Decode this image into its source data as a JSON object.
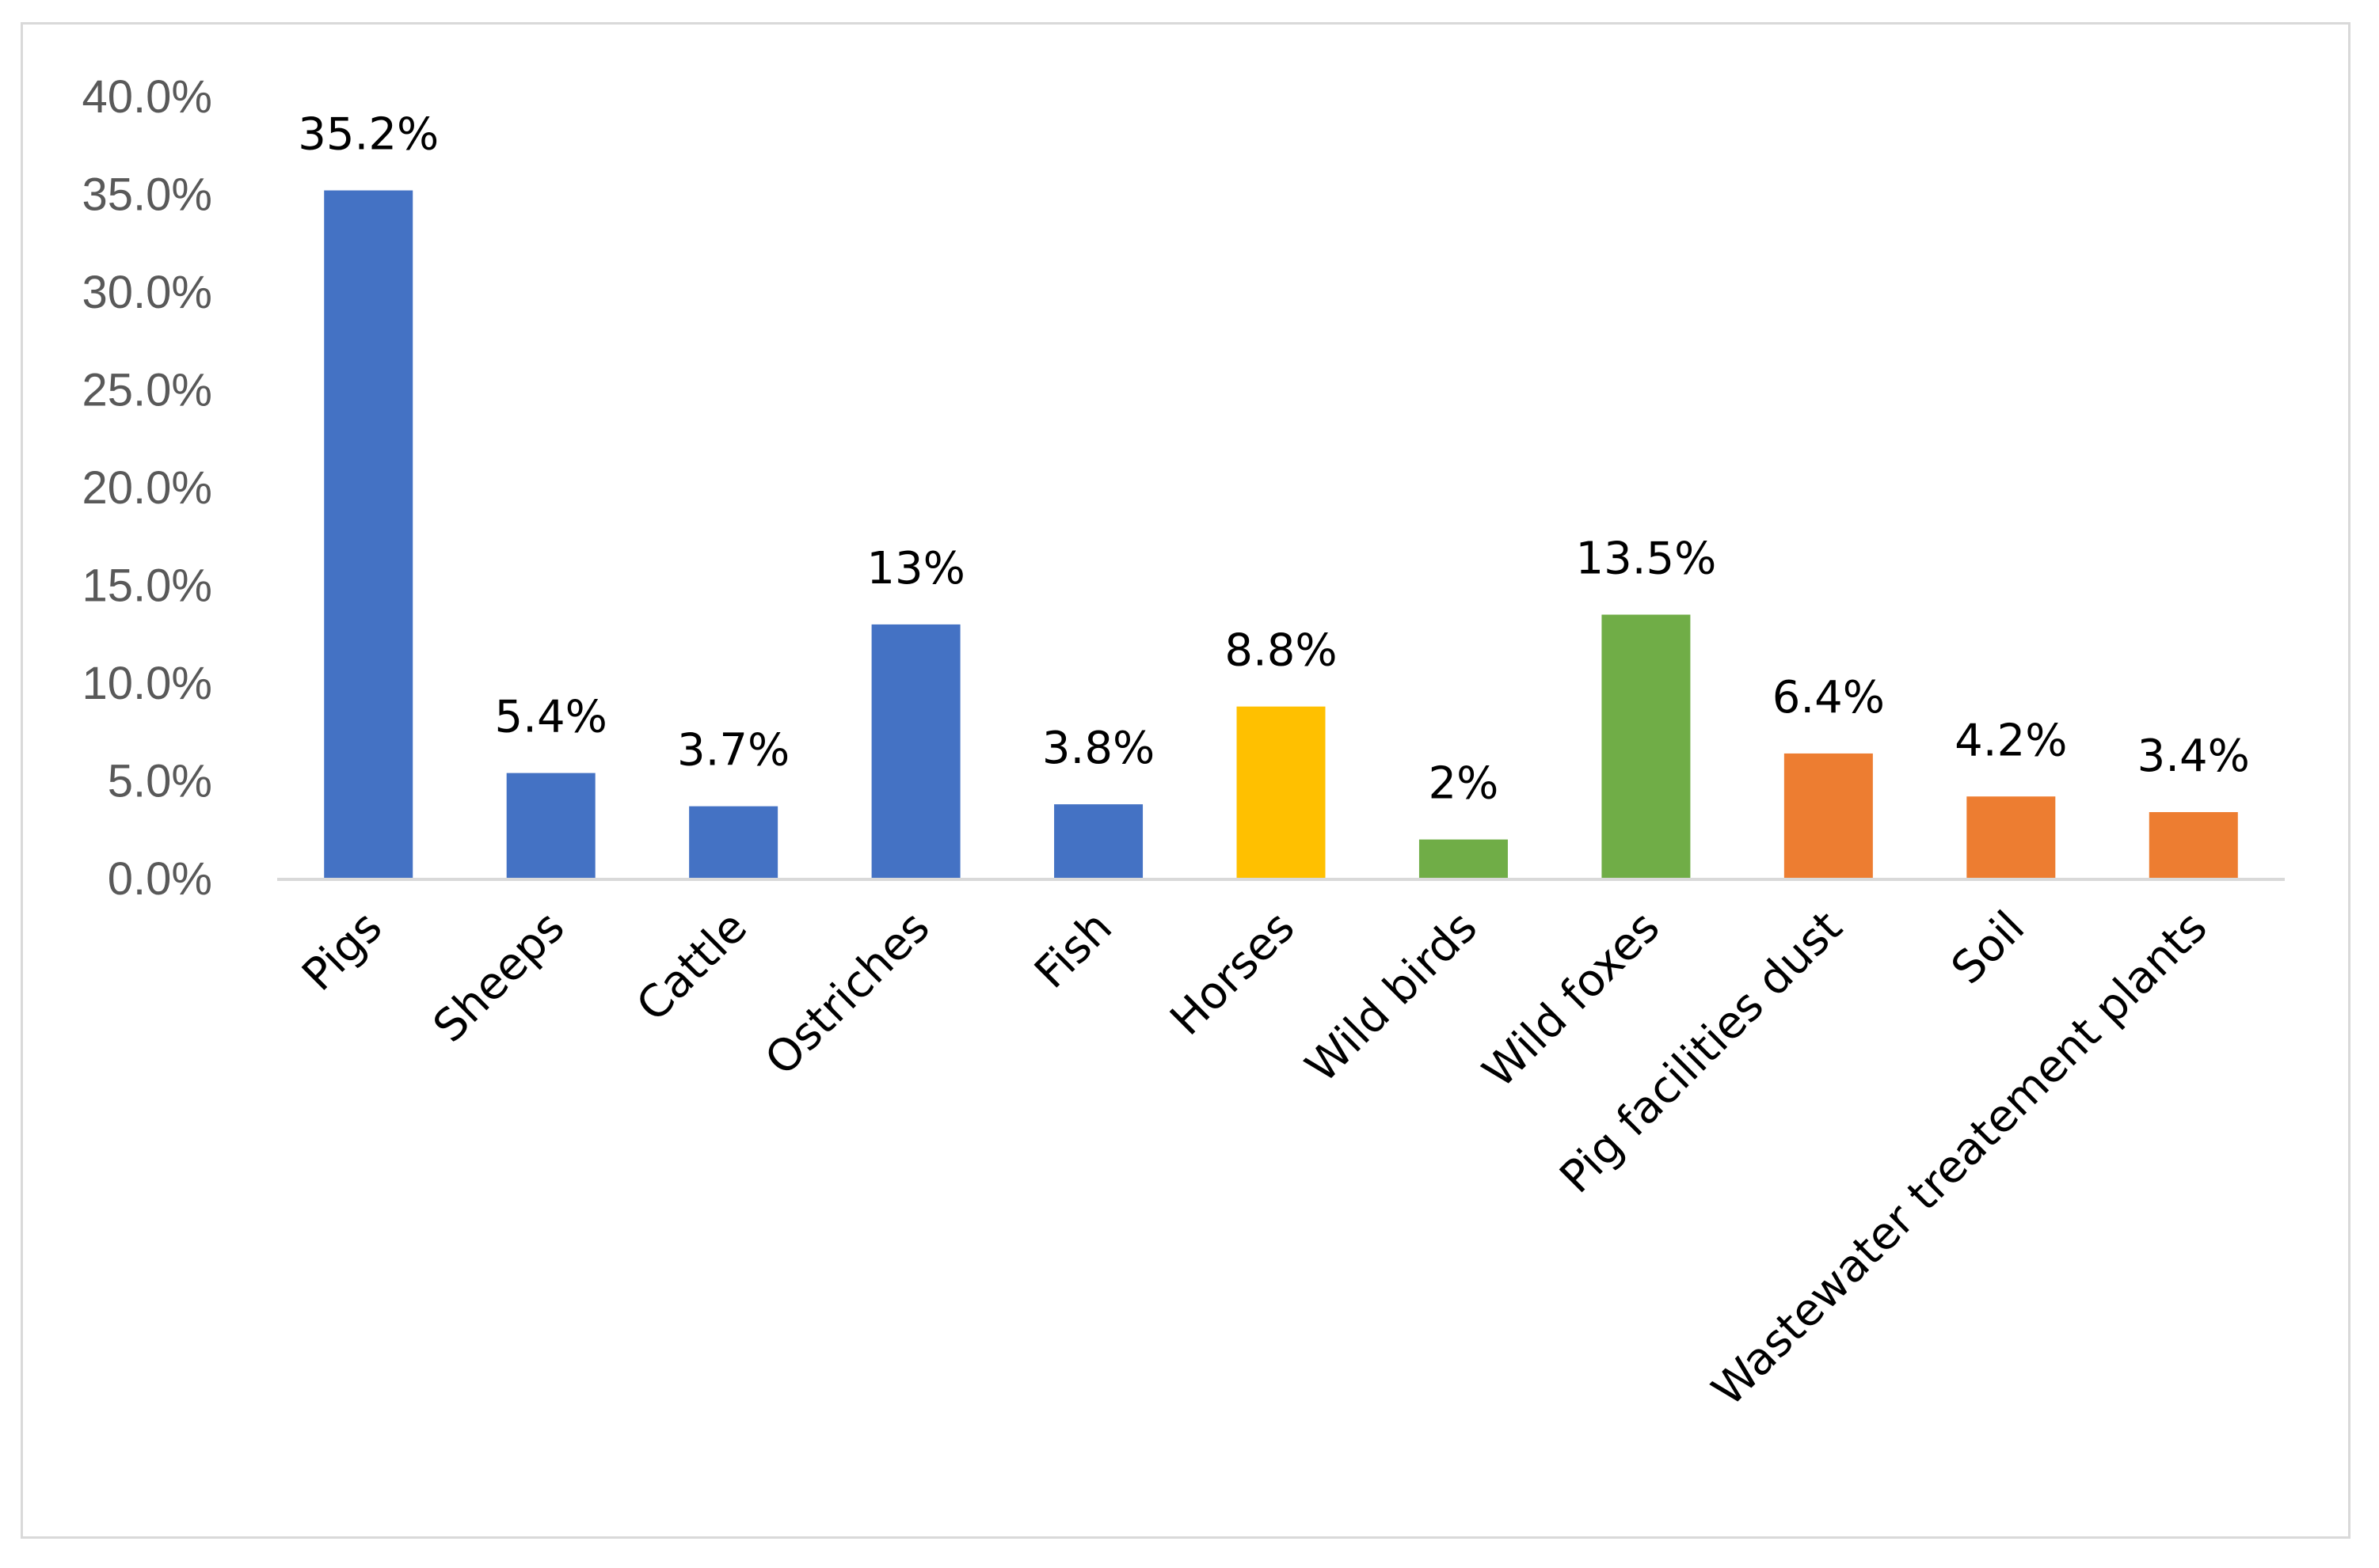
{
  "chart_data": {
    "type": "bar",
    "title": "",
    "xlabel": "",
    "ylabel": "",
    "ylim": [
      0,
      40
    ],
    "y_ticks": [
      "0.0%",
      "5.0%",
      "10.0%",
      "15.0%",
      "20.0%",
      "25.0%",
      "30.0%",
      "35.0%",
      "40.0%"
    ],
    "grid": false,
    "legend": "none",
    "categories": [
      "Pigs",
      "Sheeps",
      "Cattle",
      "Ostriches",
      "Fish",
      "Horses",
      "Wild birds",
      "Wild foxes",
      "Pig facilities dust",
      "Soil",
      "Wastewater treatement plants"
    ],
    "values": [
      35.2,
      5.4,
      3.7,
      13,
      3.8,
      8.8,
      2,
      13.5,
      6.4,
      4.2,
      3.4
    ],
    "data_labels": [
      "35.2%",
      "5.4%",
      "3.7%",
      "13%",
      "3.8%",
      "8.8%",
      "2%",
      "13.5%",
      "6.4%",
      "4.2%",
      "3.4%"
    ],
    "bar_colors": [
      "#4472c4",
      "#4472c4",
      "#4472c4",
      "#4472c4",
      "#4472c4",
      "#ffc000",
      "#70ad47",
      "#70ad47",
      "#ed7d31",
      "#ed7d31",
      "#ed7d31"
    ],
    "axis_color": "#d9d9d9"
  }
}
